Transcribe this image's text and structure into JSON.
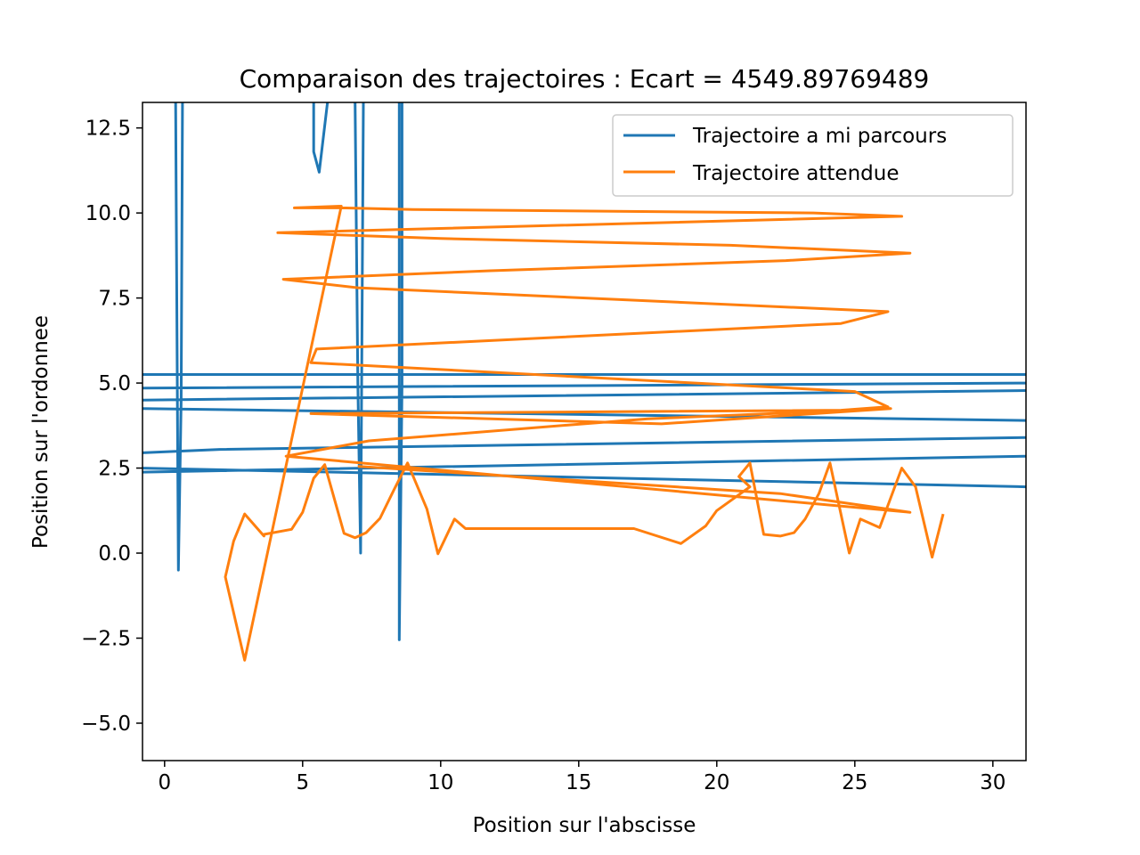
{
  "chart_data": {
    "type": "line",
    "title": "Comparaison des trajectoires : Ecart =  4549.89769489",
    "xlabel": "Position sur l'abscisse",
    "ylabel": "Position sur l'ordonnee",
    "xlim": [
      -0.8,
      31.2
    ],
    "ylim": [
      -6.1,
      13.25
    ],
    "x_ticks": [
      0,
      5,
      10,
      15,
      20,
      25,
      30
    ],
    "x_tick_labels": [
      "0",
      "5",
      "10",
      "15",
      "20",
      "25",
      "30"
    ],
    "y_ticks": [
      -5.0,
      -2.5,
      0.0,
      2.5,
      5.0,
      7.5,
      10.0,
      12.5
    ],
    "y_tick_labels": [
      "−5.0",
      "−2.5",
      "0.0",
      "2.5",
      "5.0",
      "7.5",
      "10.0",
      "12.5"
    ],
    "grid": false,
    "legend_position": "top-right",
    "series": [
      {
        "name": "Trajectoire a mi parcours",
        "color": "#1f77b4",
        "x": [
          0.4,
          0.5,
          0.6,
          0.65,
          null,
          5.4,
          5.4,
          5.6,
          5.9,
          null,
          6.9,
          7.0,
          7.1,
          7.2,
          null,
          8.5,
          8.5,
          8.6,
          8.6,
          null,
          -0.8,
          31.2,
          null,
          -0.8,
          31.2,
          null,
          -0.8,
          31.2,
          null,
          -0.8,
          31.2,
          null,
          -0.8,
          2.0,
          31.2,
          null,
          -0.8,
          31.2,
          null,
          -0.8,
          31.2
        ],
        "y": [
          13.25,
          -0.5,
          4.5,
          13.25,
          null,
          13.25,
          11.8,
          11.2,
          13.25,
          null,
          13.25,
          5.0,
          0.0,
          13.25,
          null,
          13.25,
          -2.55,
          5.0,
          13.25,
          null,
          5.25,
          5.25,
          null,
          4.85,
          5.0,
          null,
          4.5,
          4.78,
          null,
          4.25,
          3.9,
          null,
          2.95,
          3.05,
          3.4,
          null,
          2.5,
          1.95,
          null,
          2.38,
          2.85
        ],
        "connected": true
      },
      {
        "name": "Trajectoire attendue",
        "color": "#ff7f0e",
        "x": [
          28.2,
          27.8,
          27.2,
          26.7,
          25.9,
          25.2,
          24.8,
          24.1,
          23.7,
          23.2,
          22.8,
          22.3,
          21.7,
          21.2,
          20.8,
          21.2,
          20.0,
          19.6,
          18.7,
          17.0,
          10.9,
          10.5,
          9.9,
          9.5,
          8.8,
          8.3,
          7.8,
          7.3,
          6.9,
          6.5,
          5.8,
          5.4,
          5.0,
          4.6,
          3.6,
          3.6,
          2.9,
          2.5,
          2.2,
          2.9,
          6.4,
          4.7,
          6.4,
          9.0,
          23.5,
          26.7,
          4.1,
          10.0,
          20.5,
          27.0,
          22.5,
          11.8,
          4.3,
          7.0,
          26.2,
          24.5,
          5.5,
          5.3,
          25.0,
          26.2,
          24.5,
          5.3,
          18.0,
          26.3,
          17.5,
          7.4,
          4.4,
          27.0,
          22.3,
          7.0
        ],
        "y": [
          1.15,
          -0.12,
          1.95,
          2.5,
          0.75,
          1.0,
          0.0,
          2.65,
          1.75,
          1.0,
          0.6,
          0.5,
          0.55,
          2.65,
          2.25,
          1.95,
          1.25,
          0.8,
          0.28,
          0.72,
          0.72,
          1.0,
          -0.02,
          1.3,
          2.65,
          1.85,
          1.02,
          0.6,
          0.45,
          0.58,
          2.6,
          2.2,
          1.2,
          0.7,
          0.55,
          0.5,
          1.15,
          0.35,
          -0.7,
          -3.15,
          10.2,
          10.15,
          10.15,
          10.1,
          10.0,
          9.9,
          9.42,
          9.25,
          9.05,
          8.82,
          8.6,
          8.3,
          8.05,
          7.8,
          7.1,
          6.75,
          6.0,
          5.6,
          4.75,
          4.3,
          4.2,
          4.1,
          3.8,
          4.25,
          3.95,
          3.3,
          2.85,
          1.2,
          1.75,
          2.55
        ],
        "connected": true
      }
    ]
  }
}
